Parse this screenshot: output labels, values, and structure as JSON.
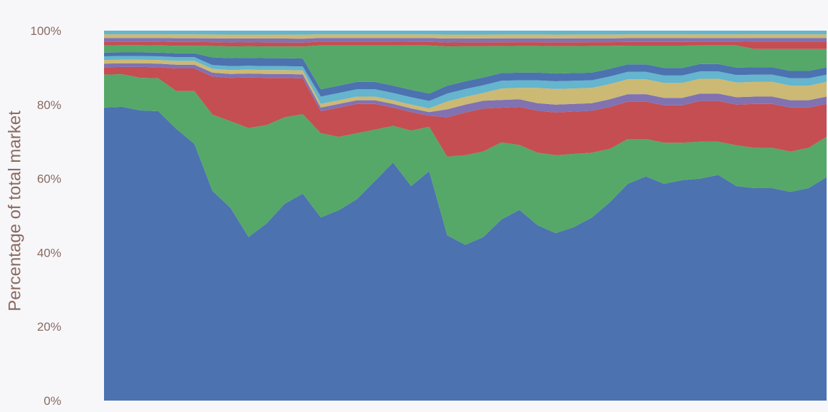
{
  "chart_data": {
    "type": "area",
    "stacked": true,
    "normalized": true,
    "title": "",
    "xlabel": "",
    "ylabel": "Percentage of total market",
    "ylim": [
      0,
      100
    ],
    "yticks": [
      "0%",
      "20%",
      "40%",
      "60%",
      "80%",
      "100%"
    ],
    "yticks_values": [
      0,
      20,
      40,
      60,
      80,
      100
    ],
    "grid": false,
    "legend": "none",
    "x": [
      0,
      1,
      2,
      3,
      4,
      5,
      6,
      7,
      8,
      9,
      10,
      11,
      12,
      13,
      14,
      15,
      16,
      17,
      18,
      19,
      20,
      21,
      22,
      23,
      24,
      25,
      26,
      27,
      28,
      29,
      30,
      31,
      32,
      33,
      34,
      35,
      36,
      37,
      38,
      39,
      40
    ],
    "series": [
      {
        "color": "#4c72b0",
        "values": [
          80,
          81,
          80,
          79,
          72,
          68,
          55,
          49,
          42,
          45,
          50,
          52,
          50,
          52,
          55,
          60,
          65,
          58,
          62,
          42,
          40,
          42,
          47,
          50,
          46,
          43,
          45,
          48,
          52,
          58,
          60,
          58,
          59,
          60,
          61,
          58,
          58,
          58,
          57,
          58,
          61
        ]
      },
      {
        "color": "#55a868",
        "values": [
          9,
          9,
          9,
          9,
          10,
          14,
          20,
          22,
          28,
          25,
          22,
          20,
          23,
          20,
          18,
          14,
          10,
          15,
          12,
          20,
          23,
          22,
          20,
          17,
          19,
          20,
          19,
          17,
          14,
          12,
          10,
          11,
          10,
          10,
          9,
          11,
          11,
          11,
          11,
          11,
          11
        ]
      },
      {
        "color": "#c44e52",
        "values": [
          2,
          2,
          3,
          3,
          6,
          6,
          10,
          11,
          13,
          12,
          10,
          9,
          6,
          8,
          8,
          7,
          5,
          5,
          3,
          10,
          11,
          11,
          9,
          10,
          11,
          11,
          11,
          11,
          11,
          10,
          10,
          10,
          10,
          11,
          11,
          11,
          12,
          12,
          12,
          11,
          9
        ]
      },
      {
        "color": "#8172b2",
        "values": [
          1,
          1,
          1,
          1,
          1,
          1,
          1,
          1,
          1,
          1,
          1,
          1,
          1,
          1,
          1,
          1,
          1,
          1,
          1,
          2,
          2,
          2,
          2,
          2,
          2,
          2,
          2,
          2,
          2,
          2,
          2,
          2,
          2,
          2,
          2,
          2,
          2,
          2,
          2,
          2,
          2
        ]
      },
      {
        "color": "#ccb974",
        "values": [
          1,
          1,
          1,
          1,
          1,
          1,
          1,
          1,
          1,
          1,
          1,
          1,
          1,
          1,
          1,
          1,
          1,
          1,
          1,
          2,
          2,
          2,
          3,
          3,
          4,
          4,
          4,
          4,
          4,
          4,
          4,
          4,
          4,
          4,
          4,
          4,
          4,
          4,
          4,
          4,
          4
        ]
      },
      {
        "color": "#64b5cd",
        "values": [
          1,
          1,
          1,
          1,
          1,
          1,
          1,
          1,
          1,
          1,
          1,
          1,
          2,
          2,
          2,
          2,
          2,
          2,
          2,
          2,
          2,
          2,
          2,
          2,
          2,
          2,
          2,
          2,
          2,
          2,
          2,
          2,
          2,
          2,
          2,
          2,
          2,
          2,
          2,
          2,
          2
        ]
      },
      {
        "color": "#4c72b0",
        "values": [
          1,
          1,
          1,
          1,
          1,
          1,
          2,
          2,
          2,
          2,
          2,
          2,
          2,
          2,
          2,
          2,
          2,
          2,
          2,
          2,
          2,
          2,
          2,
          2,
          2,
          2,
          2,
          2,
          2,
          2,
          2,
          2,
          2,
          2,
          2,
          2,
          2,
          2,
          2,
          2,
          2
        ]
      },
      {
        "color": "#55a868",
        "values": [
          2,
          2,
          2,
          2,
          2,
          2,
          3,
          3,
          3,
          3,
          3,
          3,
          12,
          11,
          10,
          10,
          11,
          12,
          13,
          10,
          9,
          8,
          7,
          7,
          7,
          7,
          7,
          7,
          6,
          5,
          5,
          6,
          6,
          5,
          5,
          6,
          5,
          5,
          6,
          6,
          5
        ]
      },
      {
        "color": "#c44e52",
        "values": [
          1,
          1,
          1,
          1,
          1,
          1,
          1,
          1,
          1,
          1,
          1,
          1,
          1,
          1,
          1,
          1,
          1,
          1,
          1,
          1,
          1,
          1,
          1,
          1,
          1,
          1,
          1,
          1,
          1,
          1,
          1,
          1,
          1,
          1,
          1,
          1,
          2,
          2,
          2,
          2,
          2
        ]
      },
      {
        "color": "#8172b2",
        "values": [
          1,
          1,
          1,
          1,
          1,
          1,
          1,
          1,
          1,
          1,
          1,
          1,
          1,
          1,
          1,
          1,
          1,
          1,
          1,
          1,
          1,
          1,
          1,
          1,
          1,
          1,
          1,
          1,
          1,
          1,
          1,
          1,
          1,
          1,
          1,
          1,
          1,
          1,
          1,
          1,
          1
        ]
      },
      {
        "color": "#ccb974",
        "values": [
          1,
          1,
          1,
          1,
          1,
          1,
          1,
          1,
          1,
          1,
          1,
          1,
          1,
          1,
          1,
          1,
          1,
          1,
          1,
          1,
          1,
          1,
          1,
          1,
          1,
          1,
          1,
          1,
          1,
          1,
          1,
          1,
          1,
          1,
          1,
          1,
          1,
          1,
          1,
          1,
          1
        ]
      },
      {
        "color": "#64b5cd",
        "values": [
          1,
          1,
          1,
          1,
          1,
          1,
          1,
          1,
          1,
          1,
          1,
          1,
          1,
          1,
          1,
          1,
          1,
          1,
          1,
          1,
          1,
          1,
          1,
          1,
          1,
          1,
          1,
          1,
          1,
          1,
          1,
          1,
          1,
          1,
          1,
          1,
          1,
          1,
          1,
          1,
          1
        ]
      }
    ]
  }
}
